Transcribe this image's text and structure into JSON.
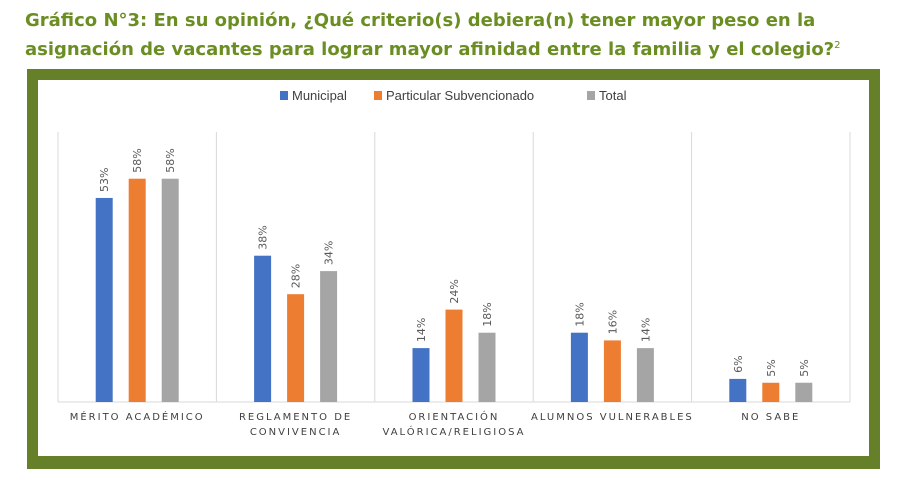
{
  "page": {
    "title_line1": "Gráfico N°3: En su opinión, ¿Qué criterio(s) debiera(n) tener mayor peso en la",
    "title_line2": "asignación de vacantes para lograr mayor afinidad entre la familia y el colegio?",
    "footnote_mark": "2"
  },
  "colors": {
    "title": "#6b8e23",
    "frame": "#667f29",
    "municipal": "#4472c4",
    "particular": "#ed7d31",
    "total": "#a5a5a5",
    "gridline": "#d9d9d9"
  },
  "chart_data": {
    "type": "bar",
    "legend_position": "top",
    "grid": false,
    "ylim": [
      0,
      65
    ],
    "categories": [
      [
        "MÉRITO ACADÉMICO"
      ],
      [
        "REGLAMENTO DE",
        "CONVIVENCIA"
      ],
      [
        "ORIENTACIÓN",
        "VALÓRICA/RELIGIOSA"
      ],
      [
        "ALUMNOS VULNERABLES"
      ],
      [
        "NO SABE"
      ]
    ],
    "series": [
      {
        "name": "Municipal",
        "color": "#4472c4",
        "values": [
          53,
          38,
          14,
          18,
          6
        ],
        "labels": [
          "53%",
          "38%",
          "14%",
          "18%",
          "6%"
        ]
      },
      {
        "name": "Particular Subvencionado",
        "color": "#ed7d31",
        "values": [
          58,
          28,
          24,
          16,
          5
        ],
        "labels": [
          "58%",
          "28%",
          "24%",
          "16%",
          "5%"
        ]
      },
      {
        "name": "Total",
        "color": "#a5a5a5",
        "values": [
          58,
          34,
          18,
          14,
          5
        ],
        "labels": [
          "58%",
          "34%",
          "18%",
          "14%",
          "5%"
        ]
      }
    ]
  }
}
